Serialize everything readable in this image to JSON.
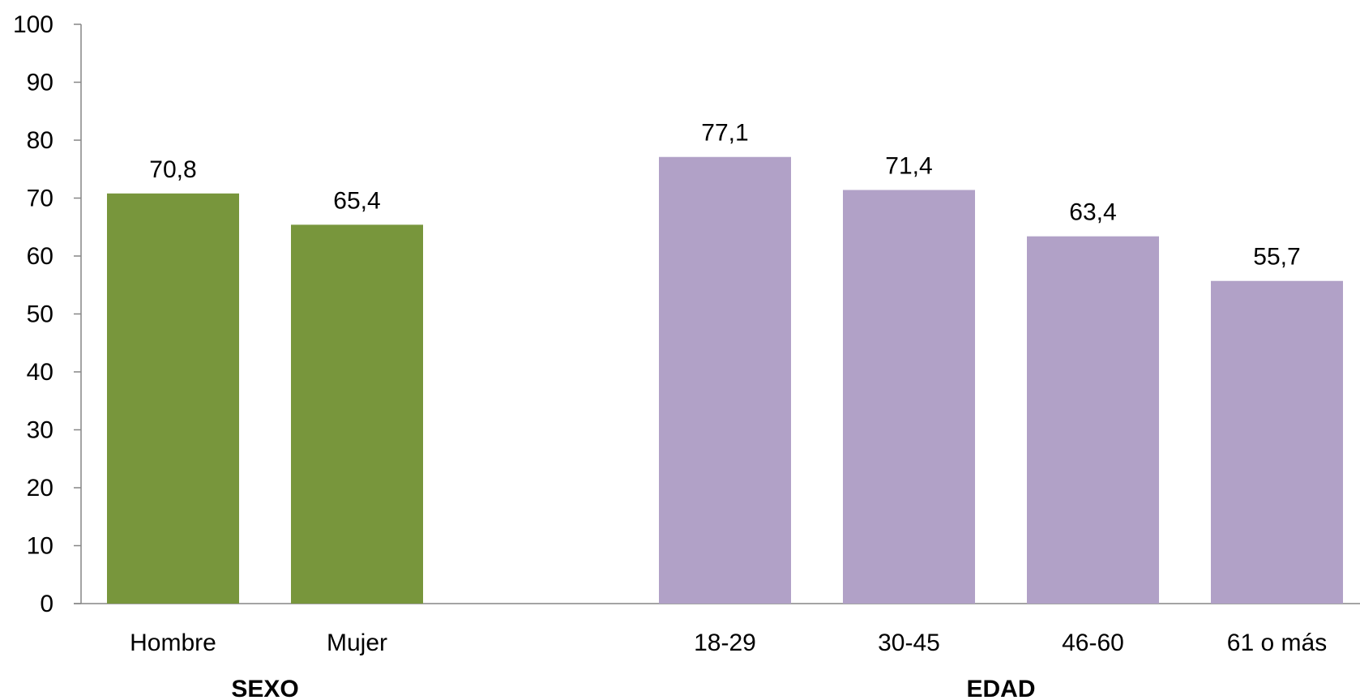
{
  "chart_data": {
    "type": "bar",
    "ylim": [
      0,
      100
    ],
    "yticks": [
      0,
      10,
      20,
      30,
      40,
      50,
      60,
      70,
      80,
      90,
      100
    ],
    "grid": false,
    "legend": "none",
    "groups": [
      {
        "label": "SEXO",
        "color": "#78963c",
        "categories": [
          "Hombre",
          "Mujer"
        ],
        "values": [
          70.8,
          65.4
        ],
        "value_labels": [
          "70,8",
          "65,4"
        ]
      },
      {
        "label": "EDAD",
        "color": "#b1a1c7",
        "categories": [
          "18-29",
          "30-45",
          "46-60",
          "61 o más"
        ],
        "values": [
          77.1,
          71.4,
          63.4,
          55.7
        ],
        "value_labels": [
          "77,1",
          "71,4",
          "63,4",
          "55,7"
        ]
      }
    ]
  }
}
